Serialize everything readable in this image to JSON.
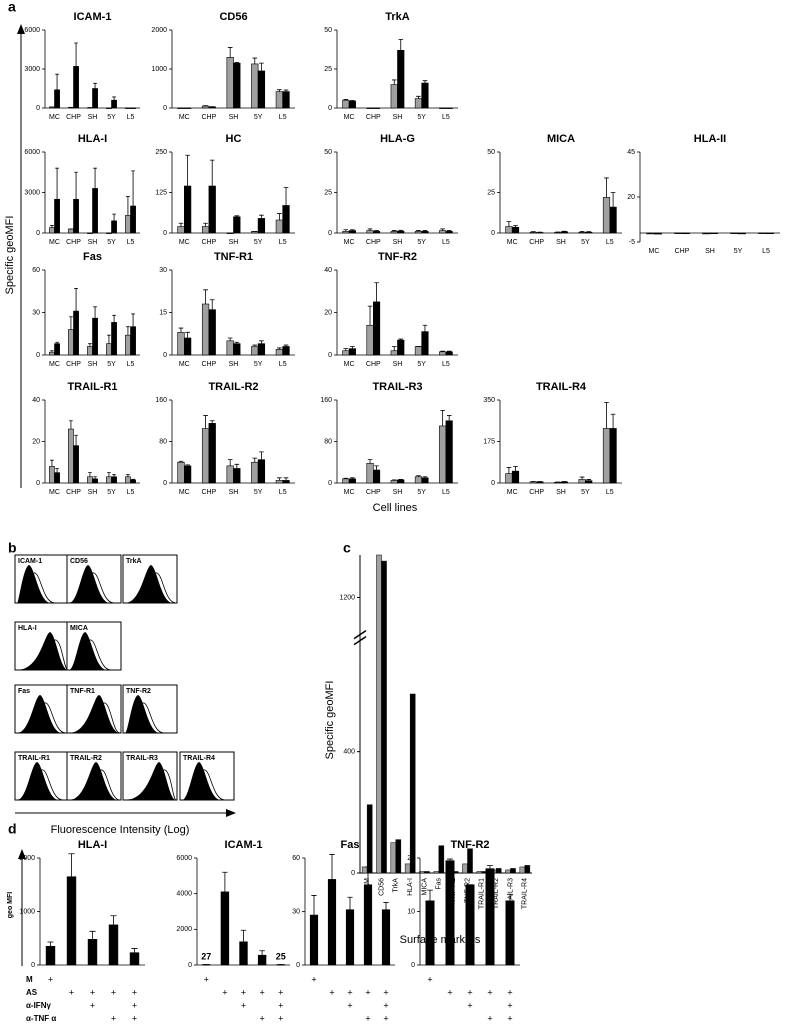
{
  "figure": {
    "panel_labels": [
      "a",
      "b",
      "c",
      "d"
    ],
    "a_ylabel": "Specific geoMFI",
    "a_xlabel": "Cell lines",
    "b_xlabel": "Fluorescence Intensity (Log)",
    "d_ylabel": "geo MFI"
  },
  "histograms": {
    "titles": [
      "ICAM-1",
      "CD56",
      "TrkA",
      "HLA-I",
      "MICA",
      "Fas",
      "TNF-R1",
      "TNF-R2",
      "TRAIL-R1",
      "TRAIL-R2",
      "TRAIL-R3",
      "TRAIL-R4"
    ]
  },
  "conditions": [
    {
      "label": "M",
      "marks": [
        "+",
        null,
        null,
        null,
        null
      ]
    },
    {
      "label": "AS",
      "marks": [
        null,
        "+",
        "+",
        "+",
        "+"
      ]
    },
    {
      "label": "α-IFNγ",
      "marks": [
        null,
        null,
        "+",
        null,
        "+"
      ]
    },
    {
      "label": "α-TNF α",
      "marks": [
        null,
        null,
        null,
        "+",
        "+"
      ]
    }
  ],
  "chart_data": [
    {
      "type": "bar",
      "title": "ICAM-1",
      "categories": [
        "MC",
        "CHP",
        "SH",
        "5Y",
        "L5"
      ],
      "ylim": [
        0,
        6000
      ],
      "yticks": [
        0,
        3000,
        6000
      ],
      "series": [
        {
          "color": "#a0a0a0",
          "values": [
            80,
            50,
            30,
            0,
            0
          ],
          "errors": [
            0,
            0,
            0,
            0,
            0
          ]
        },
        {
          "color": "#000000",
          "values": [
            1400,
            3200,
            1500,
            600,
            0
          ],
          "errors": [
            1200,
            1800,
            400,
            250,
            0
          ]
        }
      ]
    },
    {
      "type": "bar",
      "title": "CD56",
      "categories": [
        "MC",
        "CHP",
        "SH",
        "5Y",
        "L5"
      ],
      "ylim": [
        0,
        2000
      ],
      "yticks": [
        0,
        1000,
        2000
      ],
      "series": [
        {
          "color": "#a0a0a0",
          "values": [
            0,
            50,
            1300,
            1130,
            420
          ],
          "errors": [
            0,
            10,
            250,
            150,
            50
          ]
        },
        {
          "color": "#000000",
          "values": [
            0,
            30,
            1150,
            950,
            420
          ],
          "errors": [
            0,
            5,
            20,
            200,
            40
          ]
        }
      ]
    },
    {
      "type": "bar",
      "title": "TrkA",
      "categories": [
        "MC",
        "CHP",
        "SH",
        "5Y",
        "L5"
      ],
      "ylim": [
        0,
        50
      ],
      "yticks": [
        0,
        25,
        50
      ],
      "series": [
        {
          "color": "#a0a0a0",
          "values": [
            5,
            0,
            15,
            6,
            0
          ],
          "errors": [
            0.5,
            0,
            3,
            1.5,
            0
          ]
        },
        {
          "color": "#000000",
          "values": [
            4.5,
            0,
            37,
            16,
            0
          ],
          "errors": [
            0.3,
            0,
            7,
            1.5,
            0
          ]
        }
      ]
    },
    {
      "type": "bar",
      "title": "HLA-I",
      "categories": [
        "MC",
        "CHP",
        "SH",
        "5Y",
        "L5"
      ],
      "ylim": [
        0,
        6000
      ],
      "yticks": [
        0,
        3000,
        6000
      ],
      "series": [
        {
          "color": "#a0a0a0",
          "values": [
            400,
            300,
            0,
            0,
            1300
          ],
          "errors": [
            150,
            0,
            0,
            0,
            1400
          ]
        },
        {
          "color": "#000000",
          "values": [
            2500,
            2500,
            3300,
            900,
            2000
          ],
          "errors": [
            2300,
            2000,
            1500,
            500,
            2600
          ]
        }
      ]
    },
    {
      "type": "bar",
      "title": "HC",
      "categories": [
        "MC",
        "CHP",
        "SH",
        "5Y",
        "L5"
      ],
      "ylim": [
        0,
        250
      ],
      "yticks": [
        0,
        125,
        250
      ],
      "series": [
        {
          "color": "#a0a0a0",
          "values": [
            20,
            20,
            0,
            5,
            40
          ],
          "errors": [
            10,
            10,
            0,
            0,
            20
          ]
        },
        {
          "color": "#000000",
          "values": [
            145,
            145,
            50,
            45,
            85
          ],
          "errors": [
            95,
            80,
            3,
            10,
            55
          ]
        }
      ]
    },
    {
      "type": "bar",
      "title": "HLA-G",
      "categories": [
        "MC",
        "CHP",
        "SH",
        "5Y",
        "L5"
      ],
      "ylim": [
        0,
        50
      ],
      "yticks": [
        0,
        25,
        50
      ],
      "series": [
        {
          "color": "#a0a0a0",
          "values": [
            1,
            1.5,
            1,
            1,
            1.5
          ],
          "errors": [
            1,
            1,
            0.5,
            0.5,
            1
          ]
        },
        {
          "color": "#000000",
          "values": [
            1.5,
            1,
            1.2,
            1,
            1
          ],
          "errors": [
            0.5,
            0.5,
            0.5,
            0.5,
            0.5
          ]
        }
      ]
    },
    {
      "type": "bar",
      "title": "MICA",
      "categories": [
        "MC",
        "CHP",
        "SH",
        "5Y",
        "L5"
      ],
      "ylim": [
        0,
        50
      ],
      "yticks": [
        0,
        25,
        50
      ],
      "series": [
        {
          "color": "#a0a0a0",
          "values": [
            4,
            0.5,
            0.3,
            0.5,
            22
          ],
          "errors": [
            3,
            0.3,
            0.3,
            0.5,
            12
          ]
        },
        {
          "color": "#000000",
          "values": [
            3.5,
            0.3,
            0.8,
            0.5,
            16
          ],
          "errors": [
            1,
            0.2,
            0.3,
            0.3,
            9
          ]
        }
      ]
    },
    {
      "type": "bar",
      "title": "HLA-II",
      "categories": [
        "MC",
        "CHP",
        "SH",
        "5Y",
        "L5"
      ],
      "ylim": [
        -5,
        45
      ],
      "yticks": [
        -5,
        20,
        45
      ],
      "series": [
        {
          "color": "#a0a0a0",
          "values": [
            -0.5,
            -0.3,
            -0.5,
            -0.3,
            -0.3
          ],
          "errors": [
            0.3,
            0.2,
            0.2,
            0.2,
            0.2
          ]
        },
        {
          "color": "#000000",
          "values": [
            -0.6,
            -0.4,
            -0.4,
            -0.5,
            -0.4
          ],
          "errors": [
            0.3,
            0.2,
            0.2,
            0.2,
            0.2
          ]
        }
      ]
    },
    {
      "type": "bar",
      "title": "Fas",
      "categories": [
        "MC",
        "CHP",
        "SH",
        "5Y",
        "L5"
      ],
      "ylim": [
        0,
        60
      ],
      "yticks": [
        0,
        30,
        60
      ],
      "series": [
        {
          "color": "#a0a0a0",
          "values": [
            2,
            18,
            6,
            8,
            14
          ],
          "errors": [
            1,
            9,
            2,
            6,
            6
          ]
        },
        {
          "color": "#000000",
          "values": [
            8,
            31,
            26,
            23,
            20
          ],
          "errors": [
            1,
            16,
            8,
            5,
            9
          ]
        }
      ]
    },
    {
      "type": "bar",
      "title": "TNF-R1",
      "categories": [
        "MC",
        "CHP",
        "SH",
        "5Y",
        "L5"
      ],
      "ylim": [
        0,
        30
      ],
      "yticks": [
        0,
        15,
        30
      ],
      "series": [
        {
          "color": "#a0a0a0",
          "values": [
            8,
            18,
            5,
            3,
            2
          ],
          "errors": [
            1.5,
            5,
            1,
            0.5,
            0.5
          ]
        },
        {
          "color": "#000000",
          "values": [
            6,
            16,
            4,
            4,
            3
          ],
          "errors": [
            2,
            3.5,
            0.5,
            1,
            0.5
          ]
        }
      ]
    },
    {
      "type": "bar",
      "title": "TNF-R2",
      "categories": [
        "MC",
        "CHP",
        "SH",
        "5Y",
        "L5"
      ],
      "ylim": [
        0,
        40
      ],
      "yticks": [
        0,
        20,
        40
      ],
      "series": [
        {
          "color": "#a0a0a0",
          "values": [
            2,
            14,
            2,
            4,
            1.5
          ],
          "errors": [
            1,
            9,
            2,
            0,
            0.3
          ]
        },
        {
          "color": "#000000",
          "values": [
            3,
            25,
            7,
            11,
            1.5
          ],
          "errors": [
            1,
            9,
            0.5,
            3,
            0.3
          ]
        }
      ]
    },
    {
      "type": "bar",
      "title": "TRAIL-R1",
      "categories": [
        "MC",
        "CHP",
        "SH",
        "5Y",
        "L5"
      ],
      "ylim": [
        0,
        40
      ],
      "yticks": [
        0,
        20,
        40
      ],
      "series": [
        {
          "color": "#a0a0a0",
          "values": [
            8,
            26,
            3,
            3,
            3
          ],
          "errors": [
            3,
            4,
            2,
            2,
            1
          ]
        },
        {
          "color": "#000000",
          "values": [
            5,
            18,
            2,
            3,
            1.5
          ],
          "errors": [
            2,
            5,
            1,
            1,
            0.3
          ]
        }
      ]
    },
    {
      "type": "bar",
      "title": "TRAIL-R2",
      "categories": [
        "MC",
        "CHP",
        "SH",
        "5Y",
        "L5"
      ],
      "ylim": [
        0,
        160
      ],
      "yticks": [
        0,
        80,
        160
      ],
      "series": [
        {
          "color": "#a0a0a0",
          "values": [
            40,
            105,
            33,
            40,
            5
          ],
          "errors": [
            2,
            25,
            12,
            8,
            5
          ]
        },
        {
          "color": "#000000",
          "values": [
            33,
            115,
            28,
            45,
            5
          ],
          "errors": [
            2,
            5,
            8,
            15,
            5
          ]
        }
      ]
    },
    {
      "type": "bar",
      "title": "TRAIL-R3",
      "categories": [
        "MC",
        "CHP",
        "SH",
        "5Y",
        "L5"
      ],
      "ylim": [
        0,
        160
      ],
      "yticks": [
        0,
        80,
        160
      ],
      "series": [
        {
          "color": "#a0a0a0",
          "values": [
            8,
            38,
            5,
            12,
            110
          ],
          "errors": [
            1,
            7,
            1,
            2,
            30
          ]
        },
        {
          "color": "#000000",
          "values": [
            8,
            25,
            6,
            10,
            120
          ],
          "errors": [
            2,
            8,
            1,
            2,
            10
          ]
        }
      ]
    },
    {
      "type": "bar",
      "title": "TRAIL-R4",
      "categories": [
        "MC",
        "CHP",
        "SH",
        "5Y",
        "L5"
      ],
      "ylim": [
        0,
        350
      ],
      "yticks": [
        0,
        175,
        350
      ],
      "series": [
        {
          "color": "#a0a0a0",
          "values": [
            40,
            5,
            3,
            15,
            230
          ],
          "errors": [
            25,
            1,
            1,
            10,
            110
          ]
        },
        {
          "color": "#000000",
          "values": [
            50,
            5,
            5,
            10,
            230
          ],
          "errors": [
            20,
            1,
            1,
            5,
            60
          ]
        }
      ]
    },
    {
      "type": "bar",
      "ylabel": "Specific geoMFI",
      "xlabel": "Surface markers",
      "categories": [
        "ICAM",
        "CD56",
        "TrkA",
        "HLA-I",
        "MICA",
        "Fas",
        "TNF-R1",
        "TNF-R2",
        "TRAIL-R1",
        "TRAIL-R2",
        "TRAIL-R3",
        "TRAIL-R4"
      ],
      "ylim": [
        0,
        1340
      ],
      "yticks": [
        0,
        400,
        1200
      ],
      "axis_break": [
        700,
        1150
      ],
      "series": [
        {
          "color": "#a0a0a0",
          "values": [
            20,
            1340,
            100,
            30,
            5,
            5,
            5,
            30,
            5,
            10,
            10,
            20
          ]
        },
        {
          "color": "#000000",
          "values": [
            225,
            1320,
            110,
            590,
            5,
            90,
            5,
            80,
            5,
            15,
            15,
            25
          ]
        }
      ]
    },
    {
      "type": "bar",
      "title": "HLA-I",
      "ylim": [
        0,
        2000
      ],
      "yticks": [
        0,
        1000,
        2000
      ],
      "series": [
        {
          "color": "#000000",
          "values": [
            350,
            1650,
            480,
            750,
            230
          ],
          "errors": [
            80,
            430,
            150,
            170,
            80
          ]
        }
      ]
    },
    {
      "type": "bar",
      "title": "ICAM-1",
      "ylim": [
        0,
        6000
      ],
      "yticks": [
        0,
        2000,
        4000,
        6000
      ],
      "series": [
        {
          "color": "#000000",
          "values": [
            27,
            4100,
            1300,
            550,
            25
          ],
          "errors": [
            0,
            1100,
            650,
            250,
            0
          ],
          "value_labels": [
            "27",
            null,
            null,
            null,
            "25"
          ]
        }
      ]
    },
    {
      "type": "bar",
      "title": "Fas",
      "ylim": [
        0,
        60
      ],
      "yticks": [
        0,
        30,
        60
      ],
      "series": [
        {
          "color": "#000000",
          "values": [
            28,
            48,
            31,
            45,
            31
          ],
          "errors": [
            11,
            14,
            7,
            10,
            4
          ]
        }
      ]
    },
    {
      "type": "bar",
      "title": "TNF-R2",
      "ylim": [
        0,
        20
      ],
      "yticks": [
        0,
        10,
        20
      ],
      "series": [
        {
          "color": "#000000",
          "values": [
            12,
            19.5,
            15,
            18,
            12
          ],
          "errors": [
            2,
            0.3,
            0,
            0.6,
            1.2
          ]
        }
      ]
    }
  ]
}
